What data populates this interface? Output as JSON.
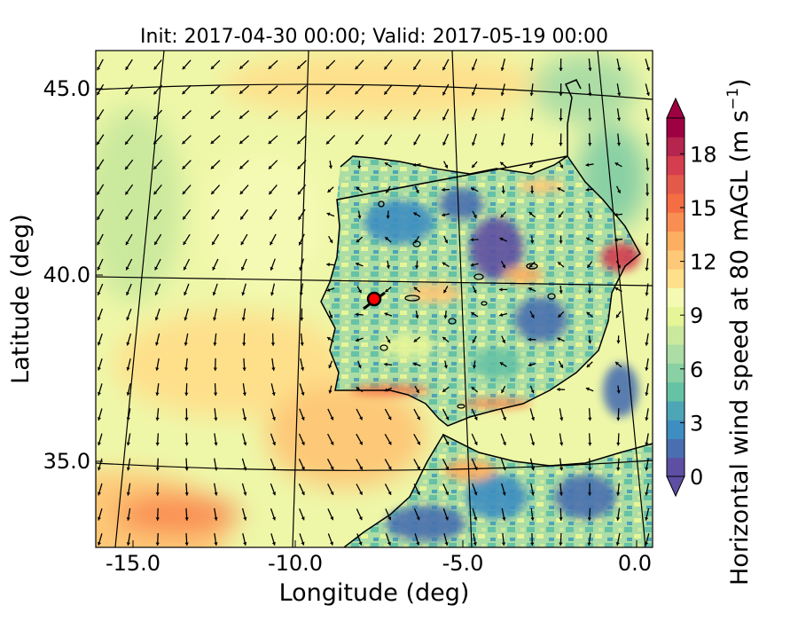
{
  "title": "Init: 2017-04-30 00:00; Valid: 2017-05-19 00:00",
  "xlabel": "Longitude (deg)",
  "ylabel": "Latitude (deg)",
  "colorbar": {
    "label_prefix": "Horizontal wind speed at 80 mAGL (m s",
    "label_exp": "−1",
    "label_suffix": ")",
    "ticks": [
      "0",
      "3",
      "6",
      "9",
      "12",
      "15",
      "18"
    ],
    "range": [
      0,
      20
    ],
    "colors": [
      "#5e4fa2",
      "#4a6fb0",
      "#3e8ec2",
      "#4da6b5",
      "#66c2a5",
      "#89d0a4",
      "#abdda4",
      "#cbe99d",
      "#e6f598",
      "#f4fab3",
      "#fee08b",
      "#fdc877",
      "#fdae61",
      "#f98e52",
      "#f46d43",
      "#e45a4a",
      "#d53e4f",
      "#b5254e",
      "#9e0142"
    ]
  },
  "map": {
    "lon_range": [
      -16,
      0.2
    ],
    "lat_range": [
      32.6,
      46
    ],
    "lon_ticks": [
      "-15.0",
      "-10.0",
      "-5.0",
      "0.0"
    ],
    "lat_ticks": [
      "45.0",
      "40.0",
      "35.0"
    ],
    "marker": {
      "lon": -7.6,
      "lat": 39.3,
      "color": "#ff0000"
    }
  }
}
